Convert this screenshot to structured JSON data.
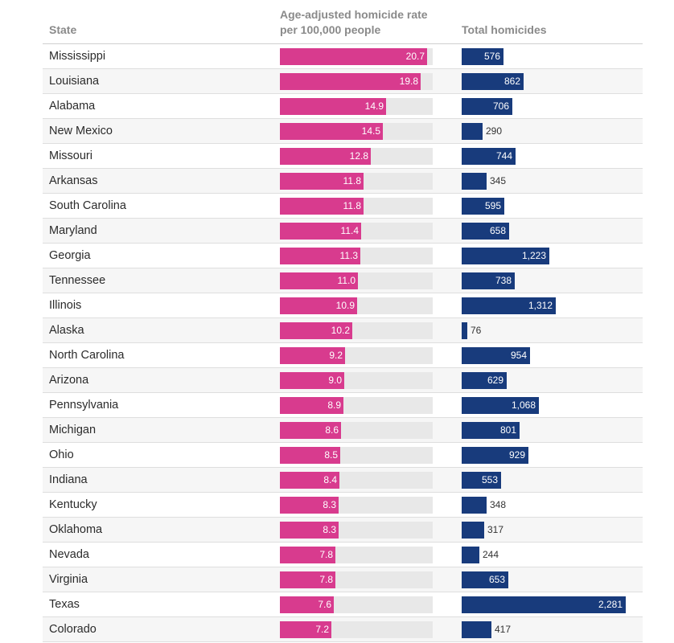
{
  "chart_data": {
    "type": "table",
    "headers": {
      "state": "State",
      "rate_line1": "Age-adjusted homicide rate",
      "rate_line2": "per 100,000 people",
      "total": "Total homicides"
    },
    "rate_axis_max": 21.5,
    "total_axis_max": 2281,
    "rows": [
      {
        "state": "Mississippi",
        "rate": 20.7,
        "rate_label": "20.7",
        "total": 576,
        "total_label": "576"
      },
      {
        "state": "Louisiana",
        "rate": 19.8,
        "rate_label": "19.8",
        "total": 862,
        "total_label": "862"
      },
      {
        "state": "Alabama",
        "rate": 14.9,
        "rate_label": "14.9",
        "total": 706,
        "total_label": "706"
      },
      {
        "state": "New Mexico",
        "rate": 14.5,
        "rate_label": "14.5",
        "total": 290,
        "total_label": "290"
      },
      {
        "state": "Missouri",
        "rate": 12.8,
        "rate_label": "12.8",
        "total": 744,
        "total_label": "744"
      },
      {
        "state": "Arkansas",
        "rate": 11.8,
        "rate_label": "11.8",
        "total": 345,
        "total_label": "345"
      },
      {
        "state": "South Carolina",
        "rate": 11.8,
        "rate_label": "11.8",
        "total": 595,
        "total_label": "595"
      },
      {
        "state": "Maryland",
        "rate": 11.4,
        "rate_label": "11.4",
        "total": 658,
        "total_label": "658"
      },
      {
        "state": "Georgia",
        "rate": 11.3,
        "rate_label": "11.3",
        "total": 1223,
        "total_label": "1,223"
      },
      {
        "state": "Tennessee",
        "rate": 11.0,
        "rate_label": "11.0",
        "total": 738,
        "total_label": "738"
      },
      {
        "state": "Illinois",
        "rate": 10.9,
        "rate_label": "10.9",
        "total": 1312,
        "total_label": "1,312"
      },
      {
        "state": "Alaska",
        "rate": 10.2,
        "rate_label": "10.2",
        "total": 76,
        "total_label": "76"
      },
      {
        "state": "North Carolina",
        "rate": 9.2,
        "rate_label": "9.2",
        "total": 954,
        "total_label": "954"
      },
      {
        "state": "Arizona",
        "rate": 9.0,
        "rate_label": "9.0",
        "total": 629,
        "total_label": "629"
      },
      {
        "state": "Pennsylvania",
        "rate": 8.9,
        "rate_label": "8.9",
        "total": 1068,
        "total_label": "1,068"
      },
      {
        "state": "Michigan",
        "rate": 8.6,
        "rate_label": "8.6",
        "total": 801,
        "total_label": "801"
      },
      {
        "state": "Ohio",
        "rate": 8.5,
        "rate_label": "8.5",
        "total": 929,
        "total_label": "929"
      },
      {
        "state": "Indiana",
        "rate": 8.4,
        "rate_label": "8.4",
        "total": 553,
        "total_label": "553"
      },
      {
        "state": "Kentucky",
        "rate": 8.3,
        "rate_label": "8.3",
        "total": 348,
        "total_label": "348"
      },
      {
        "state": "Oklahoma",
        "rate": 8.3,
        "rate_label": "8.3",
        "total": 317,
        "total_label": "317"
      },
      {
        "state": "Nevada",
        "rate": 7.8,
        "rate_label": "7.8",
        "total": 244,
        "total_label": "244"
      },
      {
        "state": "Virginia",
        "rate": 7.8,
        "rate_label": "7.8",
        "total": 653,
        "total_label": "653"
      },
      {
        "state": "Texas",
        "rate": 7.6,
        "rate_label": "7.6",
        "total": 2281,
        "total_label": "2,281"
      },
      {
        "state": "Colorado",
        "rate": 7.2,
        "rate_label": "7.2",
        "total": 417,
        "total_label": "417"
      }
    ],
    "colors": {
      "rate_bar": "#d83b8e",
      "rate_track": "#e8e8e8",
      "total_bar": "#183b7c"
    }
  }
}
